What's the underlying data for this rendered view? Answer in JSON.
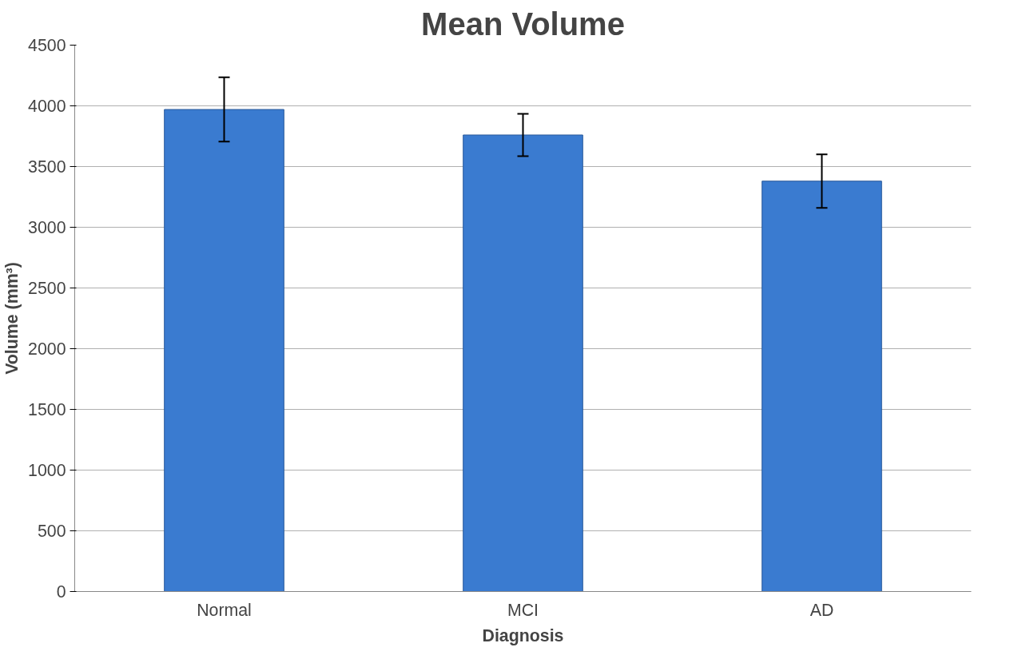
{
  "chart_data": {
    "type": "bar",
    "title": "Mean Volume",
    "xlabel": "Diagnosis",
    "ylabel": "Volume (mm³)",
    "categories": [
      "Normal",
      "MCI",
      "AD"
    ],
    "values": [
      3970,
      3760,
      3380
    ],
    "errors": [
      265,
      175,
      220
    ],
    "color": "#3a7bd0",
    "ylim": [
      0,
      4500
    ],
    "yticks": [
      0,
      500,
      1000,
      1500,
      2000,
      2500,
      3000,
      3500,
      4000,
      4500
    ],
    "grid": "y"
  }
}
